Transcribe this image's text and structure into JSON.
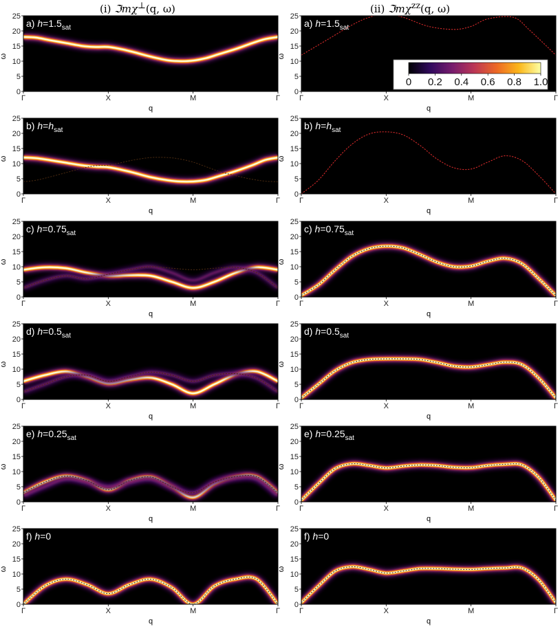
{
  "columns": [
    {
      "prefix": "(i) ",
      "title_main": "ℑmχ",
      "title_sup": "⊥",
      "title_args": "(q, ω)"
    },
    {
      "prefix": "(ii) ",
      "title_main": "ℑmχ",
      "title_sup": "zz",
      "title_args": "(q, ω)"
    }
  ],
  "colorbar": {
    "tick_labels": [
      "0",
      "0.2",
      "0.4",
      "0.6",
      "0.8",
      "1.0"
    ],
    "tick_values": [
      0,
      0.2,
      0.4,
      0.6,
      0.8,
      1.0
    ],
    "colors": [
      "#000004",
      "#320a5e",
      "#781c6d",
      "#bc3754",
      "#ed6925",
      "#fbb61a",
      "#fcffa4"
    ]
  },
  "chart_data": [
    {
      "type": "heatmap",
      "panel": "a",
      "column": "perp",
      "label_prefix": "a) ",
      "h_value": "=1.5",
      "h_sub": "sat",
      "xlabel": "q",
      "ylabel": "ω",
      "ylim": [
        0,
        25
      ],
      "yticks": [
        0,
        5,
        10,
        15,
        20,
        25
      ],
      "x_tick_labels": [
        "Γ",
        "X",
        "M",
        "Γ"
      ],
      "x": [
        0,
        0.15,
        0.3,
        0.5,
        0.7,
        0.85,
        1.0,
        1.15,
        1.3,
        1.5,
        1.7,
        1.85,
        2.0,
        2.15,
        2.3,
        2.5,
        2.7,
        2.85,
        3.0
      ],
      "bright": [
        {
          "y": [
            18,
            17.8,
            17,
            16,
            15,
            14.7,
            14.7,
            14,
            13,
            11.5,
            10.3,
            10,
            10.2,
            11,
            12.3,
            14,
            16,
            17.3,
            18
          ],
          "amp": 1.0
        }
      ],
      "dashed": []
    },
    {
      "type": "heatmap",
      "panel": "a",
      "column": "zz",
      "label_prefix": "a) ",
      "h_value": "=1.5",
      "h_sub": "sat",
      "xlabel": "q",
      "ylabel": "ω",
      "ylim": [
        0,
        25
      ],
      "yticks": [
        0,
        5,
        10,
        15,
        20,
        25
      ],
      "x_tick_labels": [
        "Γ",
        "X",
        "M",
        "Γ"
      ],
      "x": [
        0,
        0.3,
        0.6,
        0.8,
        1.0,
        1.2,
        1.5,
        1.8,
        2.0,
        2.2,
        2.5,
        2.7,
        3.0
      ],
      "bright": [],
      "dashed": [
        {
          "y": [
            12,
            17,
            22,
            24.5,
            25.5,
            24.5,
            21.5,
            20.5,
            21.5,
            24,
            24.5,
            20,
            12
          ]
        }
      ]
    },
    {
      "type": "heatmap",
      "panel": "b",
      "column": "perp",
      "label_prefix": "b) ",
      "h_value": "=",
      "h_sub": "sat",
      "h_prefix": "h",
      "xlabel": "q",
      "ylabel": "ω",
      "ylim": [
        0,
        25
      ],
      "yticks": [
        0,
        5,
        10,
        15,
        20,
        25
      ],
      "x_tick_labels": [
        "Γ",
        "X",
        "M",
        "Γ"
      ],
      "x": [
        0,
        0.15,
        0.3,
        0.5,
        0.7,
        0.85,
        1.0,
        1.15,
        1.3,
        1.5,
        1.7,
        1.85,
        2.0,
        2.15,
        2.3,
        2.5,
        2.7,
        2.85,
        3.0
      ],
      "bright": [
        {
          "y": [
            12,
            11.8,
            11.2,
            10.3,
            9.4,
            9,
            8.8,
            8,
            7,
            5.5,
            4.5,
            4.1,
            4.1,
            4.6,
            5.8,
            7.5,
            9.5,
            11.2,
            12
          ],
          "amp": 1.0
        }
      ],
      "dashed": [
        {
          "y": [
            4,
            4.5,
            5.5,
            7,
            8.5,
            9.3,
            9.5,
            10.3,
            11.2,
            12,
            12,
            11.5,
            10.5,
            9,
            7.5,
            6,
            4.8,
            4.2,
            4
          ]
        }
      ]
    },
    {
      "type": "heatmap",
      "panel": "b",
      "column": "zz",
      "label_prefix": "b) ",
      "h_value": "=",
      "h_sub": "sat",
      "h_prefix": "h",
      "xlabel": "q",
      "ylabel": "ω",
      "ylim": [
        0,
        25
      ],
      "yticks": [
        0,
        5,
        10,
        15,
        20,
        25
      ],
      "x_tick_labels": [
        "Γ",
        "X",
        "M",
        "Γ"
      ],
      "x": [
        0,
        0.2,
        0.4,
        0.6,
        0.8,
        1.0,
        1.2,
        1.4,
        1.6,
        1.8,
        2.0,
        2.2,
        2.4,
        2.6,
        2.8,
        3.0
      ],
      "bright": [],
      "dashed": [
        {
          "y": [
            0,
            4.5,
            11,
            16.5,
            19.8,
            20.5,
            19.5,
            16,
            11.5,
            8.6,
            8.2,
            10.5,
            12.6,
            11,
            6,
            0
          ]
        }
      ]
    },
    {
      "type": "heatmap",
      "panel": "c",
      "column": "perp",
      "label_prefix": "c) ",
      "h_value": "=0.75",
      "h_sub": "sat",
      "xlabel": "q",
      "ylabel": "ω",
      "ylim": [
        0,
        25
      ],
      "yticks": [
        0,
        5,
        10,
        15,
        20,
        25
      ],
      "x_tick_labels": [
        "Γ",
        "X",
        "M",
        "Γ"
      ],
      "x": [
        0,
        0.25,
        0.5,
        0.75,
        1.0,
        1.25,
        1.5,
        1.75,
        2.0,
        2.25,
        2.5,
        2.75,
        3.0
      ],
      "bright": [
        {
          "y": [
            9,
            9.8,
            9.5,
            8,
            7,
            7.2,
            7,
            5,
            3,
            5,
            8,
            9.8,
            9
          ],
          "amp": 1.0
        },
        {
          "y": [
            3,
            5.5,
            7,
            6,
            7.5,
            9,
            10,
            8,
            5.5,
            8,
            9.8,
            8,
            3
          ],
          "amp": 0.35
        }
      ],
      "dashed": [
        {
          "y": [
            3,
            5.5,
            7,
            6,
            7.5,
            9,
            10,
            9.5,
            9,
            9.5,
            9.8,
            8,
            3
          ]
        }
      ]
    },
    {
      "type": "heatmap",
      "panel": "c",
      "column": "zz",
      "label_prefix": "c) ",
      "h_value": "=0.75",
      "h_sub": "sat",
      "xlabel": "q",
      "ylabel": "ω",
      "ylim": [
        0,
        25
      ],
      "yticks": [
        0,
        5,
        10,
        15,
        20,
        25
      ],
      "x_tick_labels": [
        "Γ",
        "X",
        "M",
        "Γ"
      ],
      "x": [
        0,
        0.2,
        0.4,
        0.6,
        0.8,
        1.0,
        1.2,
        1.4,
        1.6,
        1.8,
        2.0,
        2.2,
        2.4,
        2.6,
        2.8,
        3.0
      ],
      "bright": [
        {
          "y": [
            0.5,
            4,
            9,
            13.5,
            16,
            16.8,
            16.2,
            14,
            11.5,
            10,
            10.2,
            11.8,
            12.8,
            11,
            6,
            0.5
          ],
          "amp": 1.0
        }
      ],
      "dashed": [
        {
          "y": [
            0.5,
            4,
            9,
            13.5,
            16,
            16.8,
            16.2,
            14,
            11.5,
            10,
            10.2,
            11.8,
            12.8,
            11,
            6,
            0.5
          ]
        }
      ]
    },
    {
      "type": "heatmap",
      "panel": "d",
      "column": "perp",
      "label_prefix": "d) ",
      "h_value": "=0.5",
      "h_sub": "sat",
      "xlabel": "q",
      "ylabel": "ω",
      "ylim": [
        0,
        25
      ],
      "yticks": [
        0,
        5,
        10,
        15,
        20,
        25
      ],
      "x_tick_labels": [
        "Γ",
        "X",
        "M",
        "Γ"
      ],
      "x": [
        0,
        0.25,
        0.5,
        0.75,
        1.0,
        1.25,
        1.5,
        1.75,
        2.0,
        2.25,
        2.5,
        2.75,
        3.0
      ],
      "bright": [
        {
          "y": [
            6,
            8,
            9.2,
            7.5,
            5.3,
            6.5,
            7.2,
            5,
            2,
            5,
            8.2,
            9.2,
            6
          ],
          "amp": 1.0
        },
        {
          "y": [
            2.5,
            5,
            7.5,
            8,
            6,
            7.5,
            9,
            8,
            6,
            8,
            8.5,
            7,
            2.5
          ],
          "amp": 0.4
        }
      ],
      "dashed": [
        {
          "y": [
            2.5,
            5,
            7.5,
            8,
            6,
            7.5,
            9,
            8,
            6,
            8,
            8.5,
            7,
            2.5
          ]
        }
      ]
    },
    {
      "type": "heatmap",
      "panel": "d",
      "column": "zz",
      "label_prefix": "d) ",
      "h_value": "=0.5",
      "h_sub": "sat",
      "xlabel": "q",
      "ylabel": "ω",
      "ylim": [
        0,
        25
      ],
      "yticks": [
        0,
        5,
        10,
        15,
        20,
        25
      ],
      "x_tick_labels": [
        "Γ",
        "X",
        "M",
        "Γ"
      ],
      "x": [
        0,
        0.2,
        0.4,
        0.6,
        0.8,
        1.0,
        1.2,
        1.4,
        1.6,
        1.8,
        2.0,
        2.2,
        2.4,
        2.6,
        2.8,
        3.0
      ],
      "bright": [
        {
          "y": [
            0.5,
            5,
            9.5,
            12.2,
            13.2,
            13.4,
            13.4,
            13.2,
            12.2,
            11,
            10.7,
            11.5,
            12.3,
            11.5,
            7,
            0.5
          ],
          "amp": 1.0
        }
      ],
      "dashed": [
        {
          "y": [
            0.5,
            5,
            9.5,
            12.2,
            13.2,
            13.4,
            13.4,
            13.2,
            12.2,
            11,
            10.7,
            11.5,
            12.3,
            11.5,
            7,
            0.5
          ]
        }
      ]
    },
    {
      "type": "heatmap",
      "panel": "e",
      "column": "perp",
      "label_prefix": "e) ",
      "h_value": "=0.25",
      "h_sub": "sat",
      "xlabel": "q",
      "ylabel": "ω",
      "ylim": [
        0,
        25
      ],
      "yticks": [
        0,
        5,
        10,
        15,
        20,
        25
      ],
      "x_tick_labels": [
        "Γ",
        "X",
        "M",
        "Γ"
      ],
      "x": [
        0,
        0.25,
        0.5,
        0.75,
        1.0,
        1.25,
        1.5,
        1.75,
        2.0,
        2.25,
        2.5,
        2.75,
        3.0
      ],
      "bright": [
        {
          "y": [
            3,
            6.5,
            8.5,
            7,
            4,
            7,
            8.2,
            5,
            1.5,
            6,
            8.3,
            8.3,
            3
          ],
          "amp": 1.0
        },
        {
          "y": [
            2,
            5,
            7.5,
            6.5,
            5,
            6.5,
            7.5,
            5,
            3,
            6.5,
            8,
            7.5,
            2
          ],
          "amp": 0.45
        }
      ],
      "dashed": [
        {
          "y": [
            3,
            6.5,
            8.5,
            7,
            4,
            7,
            8.2,
            5,
            3,
            6.5,
            8.3,
            8.3,
            3
          ]
        }
      ]
    },
    {
      "type": "heatmap",
      "panel": "e",
      "column": "zz",
      "label_prefix": "e) ",
      "h_value": "=0.25",
      "h_sub": "sat",
      "xlabel": "q",
      "ylabel": "ω",
      "ylim": [
        0,
        25
      ],
      "yticks": [
        0,
        5,
        10,
        15,
        20,
        25
      ],
      "x_tick_labels": [
        "Γ",
        "X",
        "M",
        "Γ"
      ],
      "x": [
        0,
        0.2,
        0.4,
        0.6,
        0.8,
        1.0,
        1.2,
        1.4,
        1.6,
        1.8,
        2.0,
        2.2,
        2.4,
        2.6,
        2.8,
        3.0
      ],
      "bright": [
        {
          "y": [
            0.5,
            6,
            11,
            12.6,
            12,
            11.2,
            11.8,
            12.2,
            12,
            11.4,
            11.3,
            12,
            12.4,
            12.2,
            8,
            0.5
          ],
          "amp": 1.0
        }
      ],
      "dashed": [
        {
          "y": [
            0.5,
            6,
            11,
            12.6,
            12,
            11.2,
            11.8,
            12.2,
            12,
            11.4,
            11.3,
            12,
            12.4,
            12.2,
            8,
            0.5
          ]
        }
      ]
    },
    {
      "type": "heatmap",
      "panel": "f",
      "column": "perp",
      "label_prefix": "f) ",
      "h_value": "=0",
      "h_sub": "",
      "xlabel": "q",
      "ylabel": "ω",
      "ylim": [
        0,
        25
      ],
      "yticks": [
        0,
        5,
        10,
        15,
        20,
        25
      ],
      "x_tick_labels": [
        "Γ",
        "X",
        "M",
        "Γ"
      ],
      "x": [
        0,
        0.25,
        0.5,
        0.75,
        1.0,
        1.25,
        1.5,
        1.75,
        2.0,
        2.25,
        2.5,
        2.75,
        3.0
      ],
      "bright": [
        {
          "y": [
            0,
            6,
            8.3,
            6.5,
            3.5,
            6.5,
            8.3,
            5.5,
            0,
            6,
            8.3,
            8.3,
            0
          ],
          "amp": 1.0
        }
      ],
      "dashed": [
        {
          "y": [
            0,
            6,
            8.3,
            6.5,
            3.5,
            6.5,
            8.3,
            5.5,
            0,
            6,
            8.3,
            8.3,
            0
          ]
        }
      ]
    },
    {
      "type": "heatmap",
      "panel": "f",
      "column": "zz",
      "label_prefix": "f) ",
      "h_value": "=0",
      "h_sub": "",
      "xlabel": "q",
      "ylabel": "ω",
      "ylim": [
        0,
        25
      ],
      "yticks": [
        0,
        5,
        10,
        15,
        20,
        25
      ],
      "x_tick_labels": [
        "Γ",
        "X",
        "M",
        "Γ"
      ],
      "x": [
        0,
        0.2,
        0.4,
        0.6,
        0.8,
        1.0,
        1.2,
        1.4,
        1.6,
        1.8,
        2.0,
        2.2,
        2.4,
        2.6,
        2.8,
        3.0
      ],
      "bright": [
        {
          "y": [
            0.5,
            6,
            11,
            12.4,
            11.5,
            10.3,
            11,
            11.8,
            11.8,
            11.6,
            11.5,
            11.8,
            12,
            12,
            8,
            0.5
          ],
          "amp": 1.0
        }
      ],
      "dashed": [
        {
          "y": [
            0.5,
            6,
            11,
            12.4,
            11.5,
            10.3,
            11,
            11.8,
            11.8,
            11.6,
            11.5,
            11.8,
            12,
            12,
            8,
            0.5
          ]
        }
      ]
    }
  ]
}
